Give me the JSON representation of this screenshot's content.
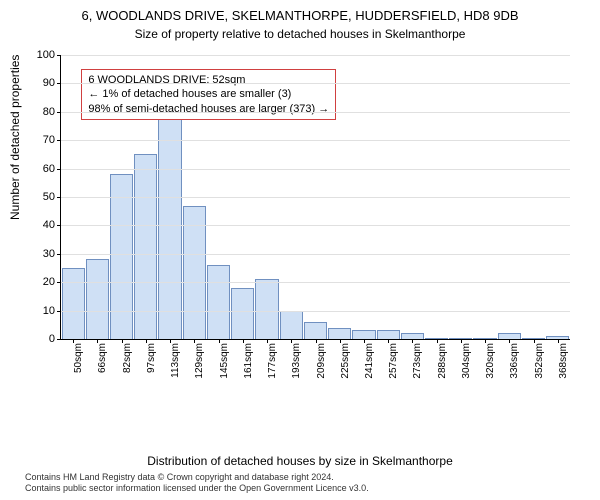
{
  "title": "6, WOODLANDS DRIVE, SKELMANTHORPE, HUDDERSFIELD, HD8 9DB",
  "subtitle": "Size of property relative to detached houses in Skelmanthorpe",
  "chart": {
    "type": "bar",
    "ylabel": "Number of detached properties",
    "xlabel": "Distribution of detached houses by size in Skelmanthorpe",
    "ylim": [
      0,
      100
    ],
    "ytick_step": 10,
    "x_categories": [
      "50sqm",
      "66sqm",
      "82sqm",
      "97sqm",
      "113sqm",
      "129sqm",
      "145sqm",
      "161sqm",
      "177sqm",
      "193sqm",
      "209sqm",
      "225sqm",
      "241sqm",
      "257sqm",
      "273sqm",
      "288sqm",
      "304sqm",
      "320sqm",
      "336sqm",
      "352sqm",
      "368sqm"
    ],
    "values": [
      25,
      28,
      58,
      65,
      80,
      47,
      26,
      18,
      21,
      10,
      6,
      4,
      3,
      3,
      2,
      0,
      0,
      0,
      2,
      0,
      1
    ],
    "bar_fill": "#cfe0f5",
    "bar_stroke": "#7090c0",
    "grid_color": "#e0e0e0",
    "background_color": "#ffffff",
    "axis_color": "#000000",
    "label_fontsize": 12,
    "tick_fontsize": 11
  },
  "info_box": {
    "line1": "6 WOODLANDS DRIVE: 52sqm",
    "line2": "← 1% of detached houses are smaller (3)",
    "line3": "98% of semi-detached houses are larger (373) →",
    "border_color": "#d04040",
    "left_pct": 4,
    "top_pct": 5
  },
  "attribution": {
    "line1": "Contains HM Land Registry data © Crown copyright and database right 2024.",
    "line2": "Contains public sector information licensed under the Open Government Licence v3.0."
  }
}
